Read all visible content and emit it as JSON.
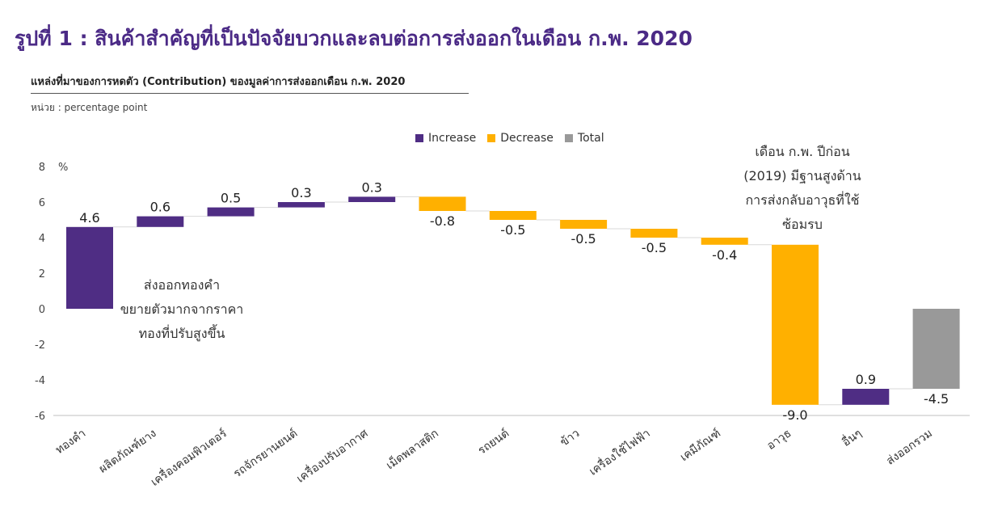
{
  "page_title": "รูปที่ 1 : สินค้าสำคัญที่เป็นปัจจัยบวกและลบต่อการส่งออกในเดือน ก.พ. 2020",
  "colors": {
    "title": "#4B2A86",
    "increase": "#4F2D84",
    "decrease": "#FFB000",
    "total": "#999999",
    "connector": "#D9D9D9"
  },
  "chart_data": {
    "type": "waterfall",
    "title": "แหล่งที่มาของการหดตัว (Contribution) ของมูลค่าการส่งออกเดือน ก.พ. 2020",
    "unit_note": "หน่วย : percentage point",
    "ylabel": "%",
    "ylim": [
      -6,
      8
    ],
    "yticks": [
      -6,
      -4,
      -2,
      0,
      2,
      4,
      6,
      8
    ],
    "grid": false,
    "legend_position": "top",
    "legend": [
      {
        "key": "increase",
        "label": "Increase"
      },
      {
        "key": "decrease",
        "label": "Decrease"
      },
      {
        "key": "total",
        "label": "Total"
      }
    ],
    "categories": [
      "ทองคำ",
      "ผลิตภัณฑ์ยาง",
      "เครื่องคอมพิวเตอร์",
      "รถจักรยานยนต์",
      "เครื่องปรับอากาศ",
      "เม็ดพลาสติก",
      "รถยนต์",
      "ข้าว",
      "เครื่องใช้ไฟฟ้า",
      "เคมีภัณฑ์",
      "อาวุธ",
      "อื่นๆ",
      "ส่งออกรวม"
    ],
    "values": [
      4.6,
      0.6,
      0.5,
      0.3,
      0.3,
      -0.8,
      -0.5,
      -0.5,
      -0.5,
      -0.4,
      -9.0,
      0.9,
      -4.5
    ],
    "value_labels": [
      "4.6",
      "0.6",
      "0.5",
      "0.3",
      "0.3",
      "-0.8",
      "-0.5",
      "-0.5",
      "-0.5",
      "-0.4",
      "-9.0",
      "0.9",
      "-4.5"
    ],
    "kinds": [
      "increase",
      "increase",
      "increase",
      "increase",
      "increase",
      "decrease",
      "decrease",
      "decrease",
      "decrease",
      "decrease",
      "decrease",
      "increase",
      "total"
    ]
  },
  "annotations": [
    {
      "id": "gold",
      "lines": [
        "ส่งออกทองคำ",
        "ขยายตัวมากจากราคา",
        "ทองที่ปรับสูงขึ้น"
      ]
    },
    {
      "id": "weapons",
      "lines": [
        "เดือน ก.พ. ปีก่อน",
        "(2019) มีฐานสูงด้าน",
        "การส่งกลับอาวุธที่ใช้",
        "ซ้อมรบ"
      ]
    }
  ]
}
